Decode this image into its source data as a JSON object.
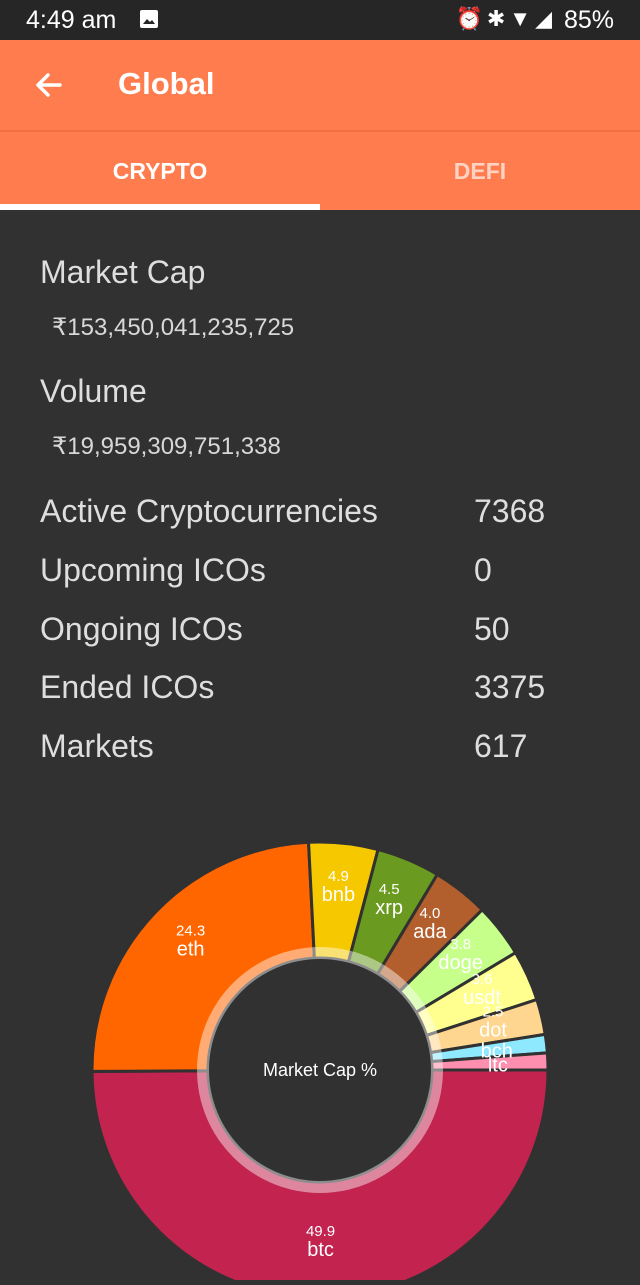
{
  "status_bar": {
    "time": "4:49 am",
    "battery": "85%",
    "icons": [
      "image-icon",
      "alarm-icon",
      "bluetooth-icon",
      "wifi-icon",
      "signal-icon"
    ]
  },
  "app_bar": {
    "title": "Global"
  },
  "tabs": [
    {
      "label": "CRYPTO",
      "active": true
    },
    {
      "label": "DEFI",
      "active": false
    }
  ],
  "market_cap": {
    "label": "Market Cap",
    "value": "₹153,450,041,235,725"
  },
  "volume": {
    "label": "Volume",
    "value": "₹19,959,309,751,338"
  },
  "stats": [
    {
      "label": "Active Cryptocurrencies",
      "value": "7368"
    },
    {
      "label": "Upcoming ICOs",
      "value": "0"
    },
    {
      "label": "Ongoing ICOs",
      "value": "50"
    },
    {
      "label": "Ended ICOs",
      "value": "3375"
    },
    {
      "label": "Markets",
      "value": "617"
    }
  ],
  "colors": {
    "app_bar": "#ff7c4f",
    "background": "#313131",
    "tab_indicator": "#ffffff"
  },
  "chart_data": {
    "type": "pie",
    "center_label": "Market Cap %",
    "categories": [
      "btc",
      "eth",
      "bnb",
      "xrp",
      "ada",
      "doge",
      "usdt",
      "dot",
      "bch",
      "ltc"
    ],
    "values": [
      49.9,
      24.3,
      4.9,
      4.5,
      4.0,
      3.8,
      3.6,
      2.5,
      1.3,
      1.2
    ],
    "value_labels": [
      "49.9",
      "24.3",
      "4.9",
      "4.5",
      "4.0",
      "3.8",
      "3.6",
      "2.5",
      "",
      ""
    ],
    "colors": [
      "#c2234f",
      "#ff6600",
      "#f5c800",
      "#6a9a1f",
      "#b25f2d",
      "#c6ff8a",
      "#ffff8f",
      "#ffd68f",
      "#8ee9ff",
      "#ff8fae"
    ]
  }
}
